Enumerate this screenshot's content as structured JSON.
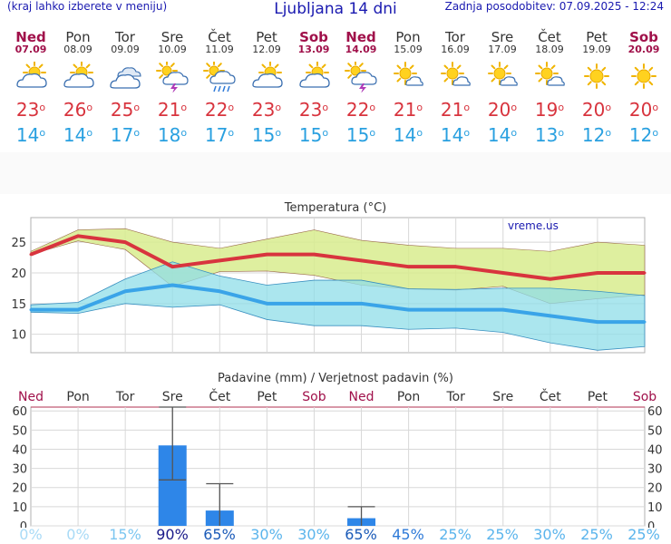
{
  "header": {
    "left_note": "(kraj lahko izberete v meniju)",
    "title": "Ljubljana 14 dni",
    "updated": "Zadnja posodobitev: 07.09.2025 - 12:24"
  },
  "colors": {
    "max_line": "#d8343e",
    "min_line": "#3aa4e8",
    "max_band": "#d8ec8e",
    "min_band": "#8fdde8",
    "bar": "#2e86e8",
    "weekend": "#a0104a"
  },
  "days": [
    {
      "name": "Ned",
      "date": "07.09",
      "weekend": true,
      "icon": "partly-cloudy-icon",
      "tmax": "23",
      "tmin": "14",
      "prob": "0%"
    },
    {
      "name": "Pon",
      "date": "08.09",
      "weekend": false,
      "icon": "partly-cloudy-icon",
      "tmax": "26",
      "tmin": "14",
      "prob": "0%"
    },
    {
      "name": "Tor",
      "date": "09.09",
      "weekend": false,
      "icon": "cloudy-icon",
      "tmax": "25",
      "tmin": "17",
      "prob": "15%"
    },
    {
      "name": "Sre",
      "date": "10.09",
      "weekend": false,
      "icon": "thunderstorm-icon",
      "tmax": "21",
      "tmin": "18",
      "prob": "90%"
    },
    {
      "name": "Čet",
      "date": "11.09",
      "weekend": false,
      "icon": "rain-icon",
      "tmax": "22",
      "tmin": "17",
      "prob": "65%"
    },
    {
      "name": "Pet",
      "date": "12.09",
      "weekend": false,
      "icon": "partly-cloudy-icon",
      "tmax": "23",
      "tmin": "15",
      "prob": "30%"
    },
    {
      "name": "Sob",
      "date": "13.09",
      "weekend": true,
      "icon": "partly-cloudy-icon",
      "tmax": "23",
      "tmin": "15",
      "prob": "30%"
    },
    {
      "name": "Ned",
      "date": "14.09",
      "weekend": true,
      "icon": "thunderstorm-icon",
      "tmax": "22",
      "tmin": "15",
      "prob": "65%"
    },
    {
      "name": "Pon",
      "date": "15.09",
      "weekend": false,
      "icon": "mostly-sunny-icon",
      "tmax": "21",
      "tmin": "14",
      "prob": "45%"
    },
    {
      "name": "Tor",
      "date": "16.09",
      "weekend": false,
      "icon": "mostly-sunny-icon",
      "tmax": "21",
      "tmin": "14",
      "prob": "25%"
    },
    {
      "name": "Sre",
      "date": "17.09",
      "weekend": false,
      "icon": "mostly-sunny-icon",
      "tmax": "20",
      "tmin": "14",
      "prob": "25%"
    },
    {
      "name": "Čet",
      "date": "18.09",
      "weekend": false,
      "icon": "mostly-sunny-icon",
      "tmax": "19",
      "tmin": "13",
      "prob": "30%"
    },
    {
      "name": "Pet",
      "date": "19.09",
      "weekend": false,
      "icon": "sunny-icon",
      "tmax": "20",
      "tmin": "12",
      "prob": "25%"
    },
    {
      "name": "Sob",
      "date": "20.09",
      "weekend": true,
      "icon": "sunny-icon",
      "tmax": "20",
      "tmin": "12",
      "prob": "25%"
    }
  ],
  "chart_data": [
    {
      "type": "line",
      "title": "Temperatura (°C)",
      "watermark": "vreme.us",
      "x": [
        "07.09",
        "08.09",
        "09.09",
        "10.09",
        "11.09",
        "12.09",
        "13.09",
        "14.09",
        "15.09",
        "16.09",
        "17.09",
        "18.09",
        "19.09",
        "20.09"
      ],
      "ylim": [
        7,
        29
      ],
      "yticks": [
        10,
        15,
        20,
        25
      ],
      "series": [
        {
          "values": [
            23,
            26,
            25,
            21,
            22,
            23,
            23,
            22,
            21,
            21,
            20,
            19,
            20,
            20
          ]
        },
        {
          "values": [
            14,
            14,
            17,
            18,
            17,
            15,
            15,
            15,
            14,
            14,
            14,
            13,
            12,
            12
          ]
        }
      ],
      "bands": [
        {
          "upper": [
            23.5,
            27,
            27.2,
            25,
            24,
            25.5,
            27,
            25.3,
            24.5,
            24,
            24,
            23.5,
            25,
            24.5
          ],
          "lower": [
            23,
            25.2,
            23.8,
            17.8,
            20.2,
            20.3,
            19.6,
            18,
            17.4,
            17.2,
            17.8,
            15,
            15.8,
            16.4
          ]
        },
        {
          "upper": [
            14.8,
            15.2,
            19,
            21.8,
            19.5,
            18,
            18.8,
            18.8,
            17.4,
            17.3,
            17.5,
            17.5,
            17,
            16.3
          ],
          "lower": [
            13.6,
            13.4,
            15,
            14.4,
            14.8,
            12.4,
            11.4,
            11.4,
            10.8,
            11,
            10.3,
            8.6,
            7.4,
            8
          ]
        }
      ],
      "grid": true
    },
    {
      "type": "bar",
      "title": "Padavine (mm) / Verjetnost padavin (%)",
      "categories": [
        "Ned",
        "Pon",
        "Tor",
        "Sre",
        "Čet",
        "Pet",
        "Sob",
        "Ned",
        "Pon",
        "Tor",
        "Sre",
        "Čet",
        "Pet",
        "Sob"
      ],
      "values": [
        0,
        0,
        0,
        42,
        8,
        0,
        0,
        4,
        0,
        0,
        0,
        0,
        0,
        0
      ],
      "error_high": [
        0,
        0,
        0,
        62,
        22,
        0,
        0,
        10,
        0,
        0,
        0,
        0,
        0,
        0
      ],
      "error_low": [
        0,
        0,
        0,
        24,
        0,
        0,
        0,
        0,
        0,
        0,
        0,
        0,
        0,
        0
      ],
      "ylim": [
        0,
        62
      ],
      "yticks": [
        0,
        10,
        20,
        30,
        40,
        50,
        60
      ],
      "probability": [
        "0%",
        "0%",
        "15%",
        "90%",
        "65%",
        "30%",
        "30%",
        "65%",
        "45%",
        "25%",
        "25%",
        "30%",
        "25%",
        "25%"
      ]
    }
  ]
}
